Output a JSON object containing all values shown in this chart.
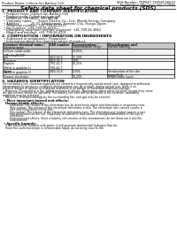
{
  "title": "Safety data sheet for chemical products (SDS)",
  "header_left": "Product Name: Lithium Ion Battery Cell",
  "header_right_line1": "SDS-Number: TDP047-19P049-00610",
  "header_right_line2": "Established / Revision: Dec.7.2016",
  "bg_color": "#ffffff",
  "section1_title": "1. PRODUCT AND COMPANY IDENTIFICATION",
  "section1_bullets": [
    "Product name: Lithium Ion Battery Cell",
    "Product code: Cylindrical-type cell",
    "  IVR66600, IVR18650, IVR18650A",
    "Company name:      Sanyo Electric Co., Ltd., Mobile Energy Company",
    "Address:           20-01  Kamikomaki, Sumoto-City, Hyogo, Japan",
    "Telephone number:  +81-799-26-4111",
    "Fax number:  +81-799-26-4120",
    "Emergency telephone number (Daytime): +81-799-26-3862",
    "                        (Night and holiday): +81-799-26-4101"
  ],
  "section2_title": "2. COMPOSITION / INFORMATION ON INGREDIENTS",
  "section2_sub": "Substance or preparation: Preparation",
  "section2_table_header": "Information about the chemical nature of product:",
  "table_col1a": "Common chemical name /",
  "table_col1b": "General name",
  "table_col2": "CAS number",
  "table_col3a": "Concentration /",
  "table_col3b": "Concentration range",
  "table_col4a": "Classification and",
  "table_col4b": "hazard labeling",
  "table_rows": [
    [
      "Lithium cobalt oxide\n(LiMnxCoyNi1O2)",
      "-",
      "30-65%",
      "-"
    ],
    [
      "Iron",
      "7439-89-6",
      "15-30%",
      "-"
    ],
    [
      "Aluminum",
      "7429-90-5",
      "2-8%",
      "-"
    ],
    [
      "Graphite\n(Metal in graphite-1)\n(Al-Mn in graphite-1)",
      "7782-42-5\n7782-44-7",
      "10-25%",
      "-"
    ],
    [
      "Copper",
      "7440-50-8",
      "5-15%",
      "Sensitization of the skin\ngroup No.2"
    ],
    [
      "Organic electrolyte",
      "-",
      "10-20%",
      "Inflammable liquid"
    ]
  ],
  "section3_title": "3. HAZARDS IDENTIFICATION",
  "section3_para1": "For the battery cell, chemical materials are stored in a hermetically sealed metal case, designed to withstand",
  "section3_para2": "temperatures or pressures-conditions during normal use. As a result, during normal use, there is no",
  "section3_para3": "physical danger of ignition or explosion and there is no danger of hazardous materials leakage.",
  "section3_para4": "   However, if exposed to a fire, added mechanical shocks, decompose, when electrical short-circuits may cause",
  "section3_para5": "the gas release cannot be operated. The battery cell case will be breached of the extreme, hazardous",
  "section3_para6": "materials may be released.",
  "section3_para7": "   Moreover, if heated strongly by the surrounding fire, soot gas may be emitted.",
  "section3_sub1": "Most important hazard and effects:",
  "section3_human": "Human health effects:",
  "section3_inhalation": "Inhalation: The release of the electrolyte has an anesthesia action and stimulates in respiratory tract.",
  "section3_skin1": "Skin contact: The release of the electrolyte stimulates a skin. The electrolyte skin contact causes a",
  "section3_skin2": "sore and stimulation on the skin.",
  "section3_eye1": "Eye contact: The release of the electrolyte stimulates eyes. The electrolyte eye contact causes a sore",
  "section3_eye2": "and stimulation on the eye. Especially, a substance that causes a strong inflammation of the eye is",
  "section3_eye3": "contained.",
  "section3_env1": "Environmental effects: Since a battery cell remains in the environment, do not throw out it into the",
  "section3_env2": "environment.",
  "section3_specific": "Specific hazards:",
  "section3_sp1": "If the electrolyte contacts with water, it will generate detrimental hydrogen fluoride.",
  "section3_sp2": "Since the used electrolyte is inflammable liquid, do not bring close to fire.",
  "text_color": "#000000",
  "line_color": "#000000",
  "header_bg": "#c8c8c8",
  "row_bg_even": "#f0f0f0",
  "row_bg_odd": "#ffffff"
}
